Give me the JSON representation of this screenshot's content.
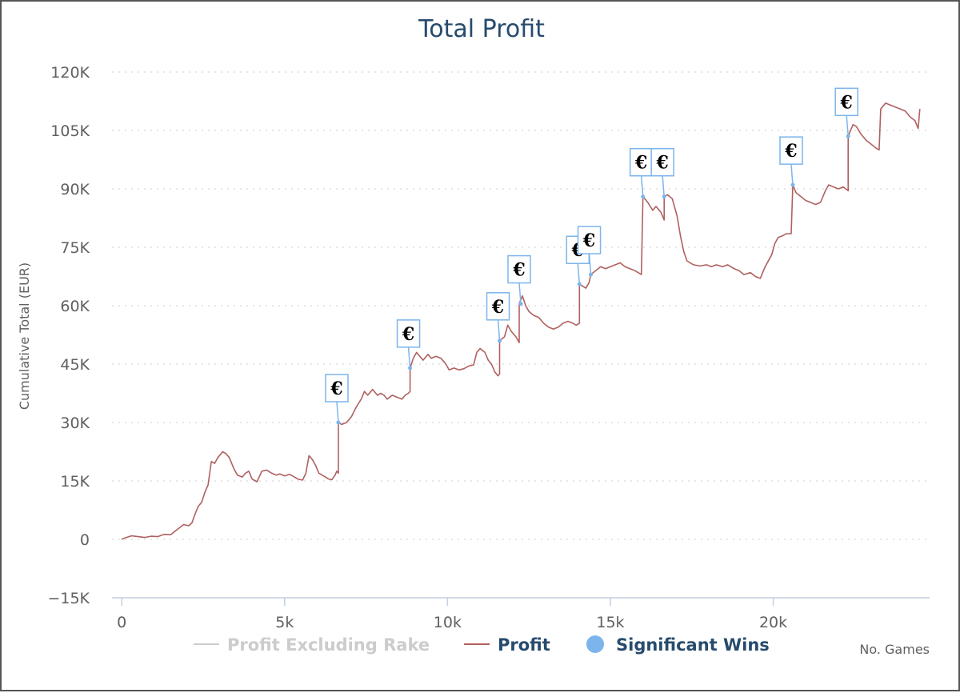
{
  "chart_data": {
    "type": "line",
    "title": "Total Profit",
    "xlabel": "No. Games",
    "ylabel": "Cumulative Total (EUR)",
    "xlim": [
      -300,
      24800
    ],
    "ylim": [
      -15000,
      120000
    ],
    "x_ticks": [
      {
        "value": 0,
        "label": "0"
      },
      {
        "value": 5000,
        "label": "5k"
      },
      {
        "value": 10000,
        "label": "10k"
      },
      {
        "value": 15000,
        "label": "15k"
      },
      {
        "value": 20000,
        "label": "20k"
      }
    ],
    "y_ticks": [
      {
        "value": 120000,
        "label": "120K"
      },
      {
        "value": 105000,
        "label": "105K"
      },
      {
        "value": 90000,
        "label": "90K"
      },
      {
        "value": 75000,
        "label": "75K"
      },
      {
        "value": 60000,
        "label": "60K"
      },
      {
        "value": 45000,
        "label": "45K"
      },
      {
        "value": 30000,
        "label": "30K"
      },
      {
        "value": 15000,
        "label": "15K"
      },
      {
        "value": 0,
        "label": "0"
      },
      {
        "value": -15000,
        "label": "−15K"
      }
    ],
    "grid": true,
    "legend": {
      "position": "bottom",
      "items": [
        {
          "name": "Profit Excluding Rake",
          "color": "#cccccc",
          "symbol": "line",
          "hidden": true
        },
        {
          "name": "Profit",
          "color": "#274b6d",
          "line_color": "#b06060",
          "symbol": "line"
        },
        {
          "name": "Significant Wins",
          "color": "#274b6d",
          "marker_color": "#7cb5ec",
          "symbol": "circle"
        }
      ]
    },
    "series": [
      {
        "name": "Profit",
        "color": "#b06060",
        "points": [
          [
            0,
            0
          ],
          [
            100,
            400
          ],
          [
            300,
            900
          ],
          [
            500,
            700
          ],
          [
            700,
            500
          ],
          [
            900,
            800
          ],
          [
            1100,
            700
          ],
          [
            1300,
            1300
          ],
          [
            1500,
            1200
          ],
          [
            1700,
            2500
          ],
          [
            1900,
            3800
          ],
          [
            2050,
            3500
          ],
          [
            2150,
            4200
          ],
          [
            2250,
            6500
          ],
          [
            2350,
            8500
          ],
          [
            2450,
            9500
          ],
          [
            2550,
            12000
          ],
          [
            2650,
            14000
          ],
          [
            2750,
            20000
          ],
          [
            2850,
            19500
          ],
          [
            2950,
            21000
          ],
          [
            3100,
            22500
          ],
          [
            3200,
            22000
          ],
          [
            3300,
            21000
          ],
          [
            3450,
            18000
          ],
          [
            3550,
            16500
          ],
          [
            3700,
            16000
          ],
          [
            3800,
            17000
          ],
          [
            3900,
            17500
          ],
          [
            4000,
            15500
          ],
          [
            4150,
            14800
          ],
          [
            4300,
            17500
          ],
          [
            4450,
            17800
          ],
          [
            4600,
            17000
          ],
          [
            4750,
            16500
          ],
          [
            4850,
            16800
          ],
          [
            5000,
            16300
          ],
          [
            5150,
            16700
          ],
          [
            5300,
            16000
          ],
          [
            5400,
            15500
          ],
          [
            5550,
            15200
          ],
          [
            5650,
            17000
          ],
          [
            5750,
            21500
          ],
          [
            5850,
            20500
          ],
          [
            5950,
            19000
          ],
          [
            6050,
            17000
          ],
          [
            6150,
            16500
          ],
          [
            6250,
            16000
          ],
          [
            6350,
            15500
          ],
          [
            6450,
            15300
          ],
          [
            6550,
            16500
          ],
          [
            6600,
            17500
          ],
          [
            6650,
            17000
          ],
          [
            6650,
            30000
          ],
          [
            6750,
            29500
          ],
          [
            6900,
            30000
          ],
          [
            7050,
            31500
          ],
          [
            7200,
            34000
          ],
          [
            7350,
            36000
          ],
          [
            7450,
            38000
          ],
          [
            7550,
            37000
          ],
          [
            7700,
            38500
          ],
          [
            7850,
            37000
          ],
          [
            7950,
            37500
          ],
          [
            8050,
            37000
          ],
          [
            8150,
            36000
          ],
          [
            8300,
            37000
          ],
          [
            8450,
            36500
          ],
          [
            8600,
            36000
          ],
          [
            8700,
            37000
          ],
          [
            8800,
            37500
          ],
          [
            8850,
            38000
          ],
          [
            8850,
            44000
          ],
          [
            8950,
            46500
          ],
          [
            9050,
            48000
          ],
          [
            9150,
            47000
          ],
          [
            9250,
            46000
          ],
          [
            9400,
            47500
          ],
          [
            9500,
            46500
          ],
          [
            9650,
            47000
          ],
          [
            9800,
            46500
          ],
          [
            9950,
            45000
          ],
          [
            10050,
            43500
          ],
          [
            10200,
            44000
          ],
          [
            10350,
            43500
          ],
          [
            10500,
            43800
          ],
          [
            10650,
            44500
          ],
          [
            10800,
            44800
          ],
          [
            10900,
            48000
          ],
          [
            11000,
            49000
          ],
          [
            11150,
            48000
          ],
          [
            11250,
            46000
          ],
          [
            11350,
            45000
          ],
          [
            11450,
            43000
          ],
          [
            11550,
            42000
          ],
          [
            11600,
            42500
          ],
          [
            11600,
            51000
          ],
          [
            11750,
            52000
          ],
          [
            11850,
            55000
          ],
          [
            11950,
            53500
          ],
          [
            12100,
            52000
          ],
          [
            12200,
            50500
          ],
          [
            12200,
            60500
          ],
          [
            12300,
            62500
          ],
          [
            12400,
            60000
          ],
          [
            12500,
            58500
          ],
          [
            12650,
            57500
          ],
          [
            12800,
            57000
          ],
          [
            12950,
            55500
          ],
          [
            13100,
            54500
          ],
          [
            13250,
            54000
          ],
          [
            13400,
            54500
          ],
          [
            13550,
            55500
          ],
          [
            13700,
            56000
          ],
          [
            13850,
            55500
          ],
          [
            13950,
            55000
          ],
          [
            14050,
            55500
          ],
          [
            14050,
            65500
          ],
          [
            14150,
            65000
          ],
          [
            14250,
            64500
          ],
          [
            14350,
            66000
          ],
          [
            14400,
            68000
          ],
          [
            14550,
            69000
          ],
          [
            14700,
            70000
          ],
          [
            14850,
            69500
          ],
          [
            15000,
            70000
          ],
          [
            15150,
            70500
          ],
          [
            15300,
            71000
          ],
          [
            15450,
            70000
          ],
          [
            15600,
            69500
          ],
          [
            15750,
            69000
          ],
          [
            15850,
            68500
          ],
          [
            15950,
            68000
          ],
          [
            16000,
            88000
          ],
          [
            16150,
            86500
          ],
          [
            16300,
            84500
          ],
          [
            16400,
            85500
          ],
          [
            16550,
            84000
          ],
          [
            16650,
            82000
          ],
          [
            16650,
            88000
          ],
          [
            16750,
            88500
          ],
          [
            16900,
            87500
          ],
          [
            17050,
            83000
          ],
          [
            17150,
            78000
          ],
          [
            17250,
            74000
          ],
          [
            17350,
            71500
          ],
          [
            17550,
            70500
          ],
          [
            17750,
            70200
          ],
          [
            17950,
            70500
          ],
          [
            18100,
            70000
          ],
          [
            18250,
            70500
          ],
          [
            18450,
            70000
          ],
          [
            18600,
            70500
          ],
          [
            18800,
            69500
          ],
          [
            18950,
            69000
          ],
          [
            19100,
            68000
          ],
          [
            19300,
            68500
          ],
          [
            19450,
            67500
          ],
          [
            19600,
            67000
          ],
          [
            19750,
            70000
          ],
          [
            19950,
            73000
          ],
          [
            20050,
            76000
          ],
          [
            20150,
            77500
          ],
          [
            20300,
            78000
          ],
          [
            20400,
            78500
          ],
          [
            20550,
            78500
          ],
          [
            20600,
            91000
          ],
          [
            20700,
            89000
          ],
          [
            20850,
            88000
          ],
          [
            21000,
            87000
          ],
          [
            21150,
            86500
          ],
          [
            21300,
            86000
          ],
          [
            21450,
            86500
          ],
          [
            21600,
            89500
          ],
          [
            21700,
            91000
          ],
          [
            21850,
            90500
          ],
          [
            22000,
            90000
          ],
          [
            22150,
            90500
          ],
          [
            22300,
            89500
          ],
          [
            22300,
            103500
          ],
          [
            22450,
            106500
          ],
          [
            22550,
            106000
          ],
          [
            22700,
            104000
          ],
          [
            22850,
            102500
          ],
          [
            23000,
            101500
          ],
          [
            23150,
            100500
          ],
          [
            23250,
            100000
          ],
          [
            23300,
            110500
          ],
          [
            23450,
            112000
          ],
          [
            23600,
            111500
          ],
          [
            23750,
            111000
          ],
          [
            23900,
            110500
          ],
          [
            24050,
            110000
          ],
          [
            24200,
            108500
          ],
          [
            24350,
            107500
          ],
          [
            24450,
            105500
          ],
          [
            24500,
            110500
          ]
        ]
      }
    ],
    "significant_wins": [
      {
        "x": 6650,
        "y": 30000,
        "label": "€"
      },
      {
        "x": 8850,
        "y": 44000,
        "label": "€"
      },
      {
        "x": 11600,
        "y": 51000,
        "label": "€"
      },
      {
        "x": 12250,
        "y": 60500,
        "label": "€"
      },
      {
        "x": 14050,
        "y": 65500,
        "label": "€"
      },
      {
        "x": 14400,
        "y": 68000,
        "label": "€"
      },
      {
        "x": 16000,
        "y": 88000,
        "label": "€"
      },
      {
        "x": 16650,
        "y": 88000,
        "label": "€"
      },
      {
        "x": 20600,
        "y": 91000,
        "label": "€"
      },
      {
        "x": 22300,
        "y": 103500,
        "label": "€"
      }
    ]
  }
}
